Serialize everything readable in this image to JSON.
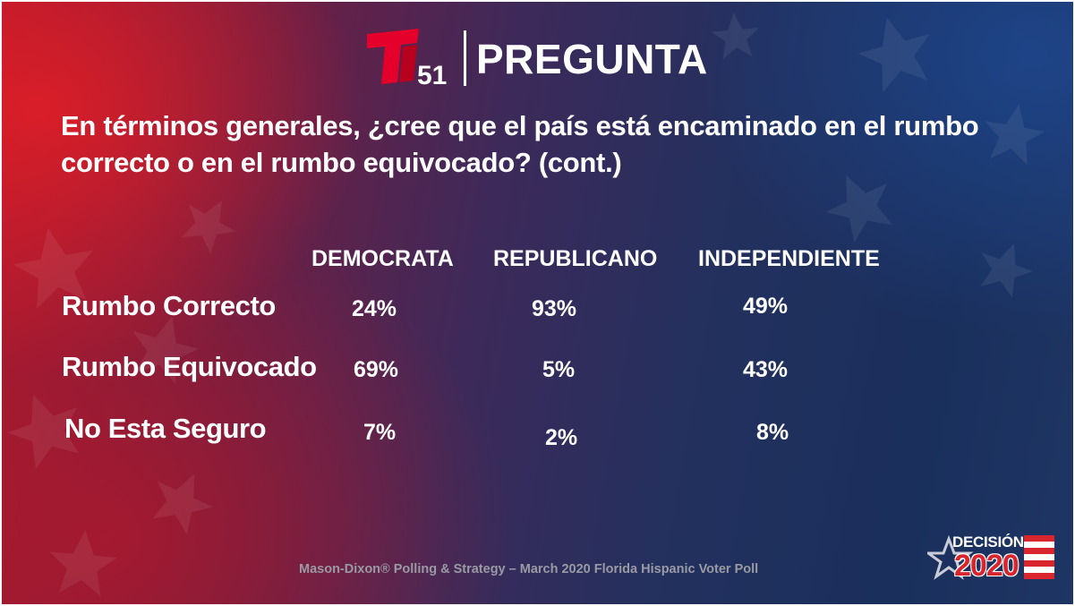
{
  "header": {
    "logo_number": "51",
    "title": "PREGUNTA"
  },
  "question": "En términos generales, ¿cree que el país está encaminado en el rumbo correcto o en el rumbo equivocado? (cont.)",
  "table": {
    "columns": [
      "DEMOCRATA",
      "REPUBLICANO",
      "INDEPENDIENTE"
    ],
    "rows": [
      {
        "label": "Rumbo Correcto",
        "values": [
          "24%",
          "93%",
          "49%"
        ]
      },
      {
        "label": "Rumbo Equivocado",
        "values": [
          "69%",
          "5%",
          "43%"
        ]
      },
      {
        "label": "No Esta Seguro",
        "values": [
          "7%",
          "2%",
          "8%"
        ]
      }
    ]
  },
  "source": "Mason-Dixon® Polling & Strategy – March 2020 Florida Hispanic Voter Poll",
  "badge": {
    "top": "DECISIÓN",
    "year": "2020"
  },
  "colors": {
    "brand_red": "#e4002b",
    "text": "#ffffff",
    "source_text": "#9a9aa4",
    "background_left": "#b0192c",
    "background_right": "#1a2f5c"
  },
  "icons": [
    "telemundo-logo-icon",
    "star-icon",
    "flag-stripes-icon"
  ]
}
